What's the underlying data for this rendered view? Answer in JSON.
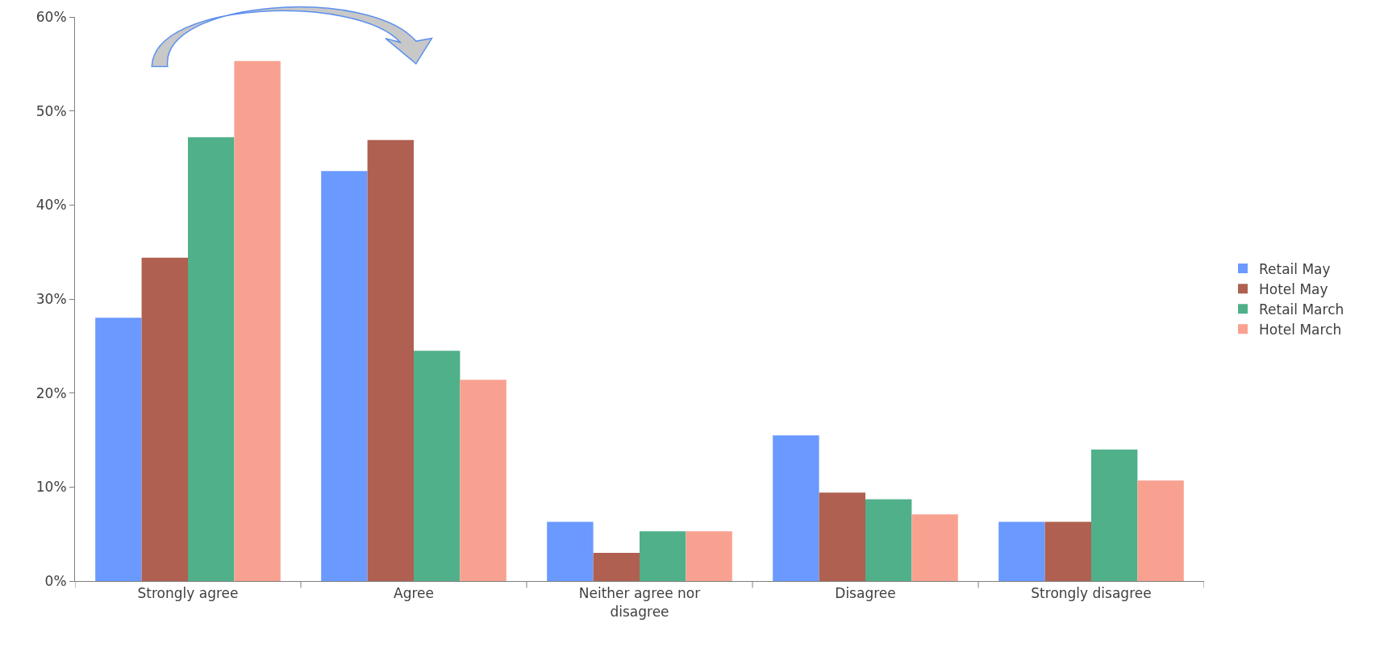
{
  "chart_data": {
    "type": "bar",
    "categories": [
      "Strongly agree",
      "Agree",
      "Neither agree nor disagree",
      "Disagree",
      "Strongly disagree"
    ],
    "series": [
      {
        "name": "Retail May",
        "color": "#6a99ff",
        "values": [
          28.0,
          43.6,
          6.3,
          15.5,
          6.3
        ]
      },
      {
        "name": "Hotel May",
        "color": "#af6050",
        "values": [
          34.4,
          46.9,
          3.0,
          9.4,
          6.3
        ]
      },
      {
        "name": "Retail March",
        "color": "#50b08a",
        "values": [
          47.2,
          24.5,
          5.3,
          8.7,
          14.0
        ]
      },
      {
        "name": "Hotel March",
        "color": "#f9a190",
        "values": [
          55.3,
          21.4,
          5.3,
          7.1,
          10.7
        ]
      }
    ],
    "ylim": [
      0,
      60
    ],
    "yticks": [
      {
        "value": 0,
        "label": "0%"
      },
      {
        "value": 10,
        "label": "10%"
      },
      {
        "value": 20,
        "label": "20%"
      },
      {
        "value": 30,
        "label": "30%"
      },
      {
        "value": 40,
        "label": "40%"
      },
      {
        "value": 50,
        "label": "50%"
      },
      {
        "value": 60,
        "label": "60%"
      }
    ],
    "legend": "right"
  }
}
